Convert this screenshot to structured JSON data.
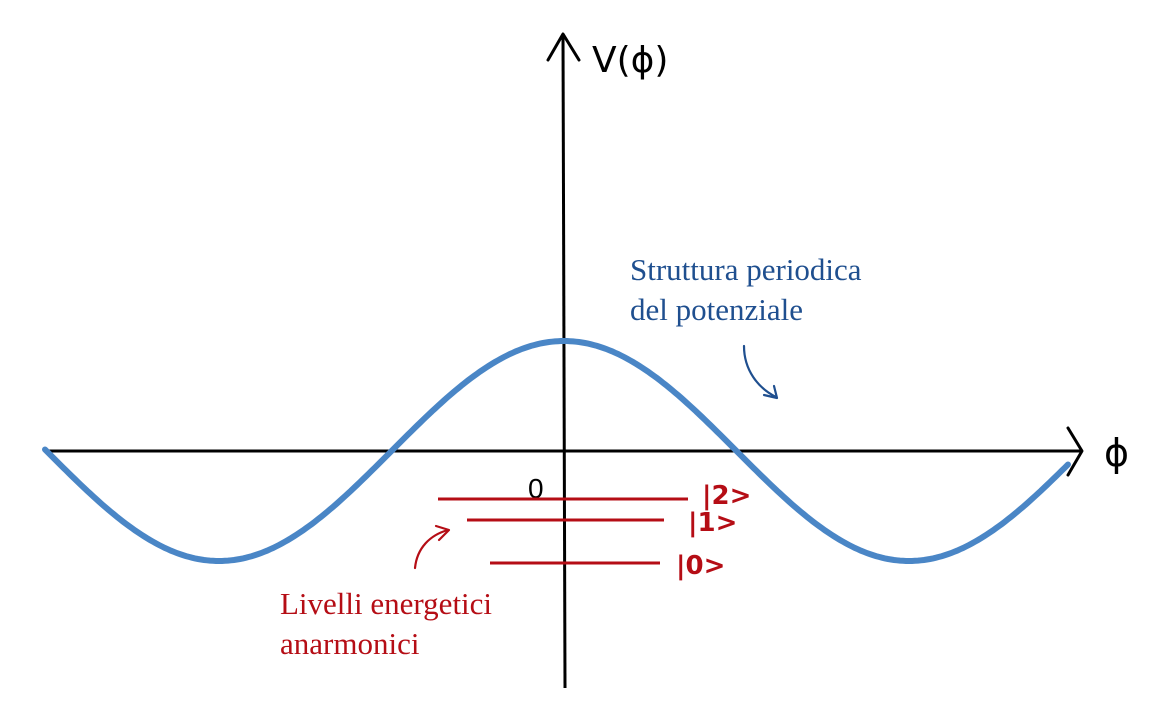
{
  "colors": {
    "axis": "#000000",
    "curve": "#4a86c6",
    "levels": "#b50d15",
    "curve_annotation": "#1f4f8f",
    "level_annotation": "#b50d15"
  },
  "axes": {
    "y_label": "V(ϕ)",
    "x_label": "ϕ",
    "origin_label": "0"
  },
  "annotations": {
    "curve_line1": "Struttura periodica",
    "curve_line2": "del potenziale",
    "levels_line1": "Livelli energetici",
    "levels_line2": "anarmonici"
  },
  "levels": [
    {
      "label": "|2>"
    },
    {
      "label": "|1>"
    },
    {
      "label": "|0>"
    }
  ]
}
